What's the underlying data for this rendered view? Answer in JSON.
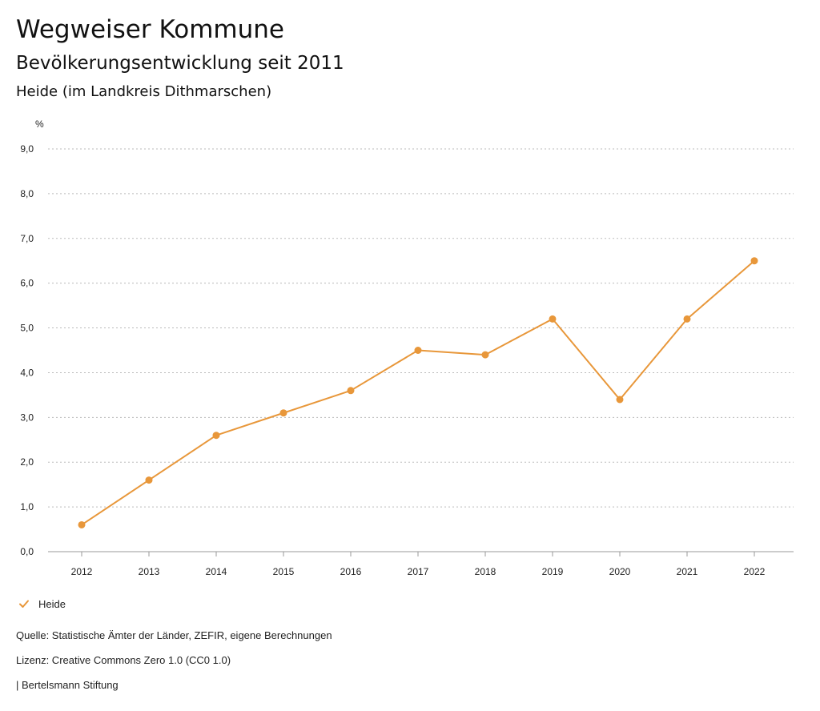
{
  "header": {
    "title": "Wegweiser Kommune",
    "subtitle": "Bevölkerungsentwicklung seit 2011",
    "region": "Heide (im Landkreis Dithmarschen)"
  },
  "legend": {
    "label": "Heide"
  },
  "footer": {
    "source": "Quelle: Statistische Ämter der Länder, ZEFIR, eigene Berechnungen",
    "license": "Lizenz: Creative Commons Zero 1.0 (CC0 1.0)",
    "publisher": "| Bertelsmann Stiftung"
  },
  "colors": {
    "series": "#E8973A",
    "grid": "#BBBBBB",
    "axis": "#999999"
  },
  "chart_data": {
    "type": "line",
    "title": "Bevölkerungsentwicklung seit 2011",
    "xlabel": "",
    "ylabel": "%",
    "x": [
      "2012",
      "2013",
      "2014",
      "2015",
      "2016",
      "2017",
      "2018",
      "2019",
      "2020",
      "2021",
      "2022"
    ],
    "series": [
      {
        "name": "Heide",
        "values": [
          0.6,
          1.6,
          2.6,
          3.1,
          3.6,
          4.5,
          4.4,
          5.2,
          3.4,
          5.2,
          6.5
        ]
      }
    ],
    "ylim": [
      0,
      9
    ],
    "yticks": [
      "0,0",
      "1,0",
      "2,0",
      "3,0",
      "4,0",
      "5,0",
      "6,0",
      "7,0",
      "8,0",
      "9,0"
    ],
    "grid": true,
    "legend_position": "bottom-left"
  }
}
